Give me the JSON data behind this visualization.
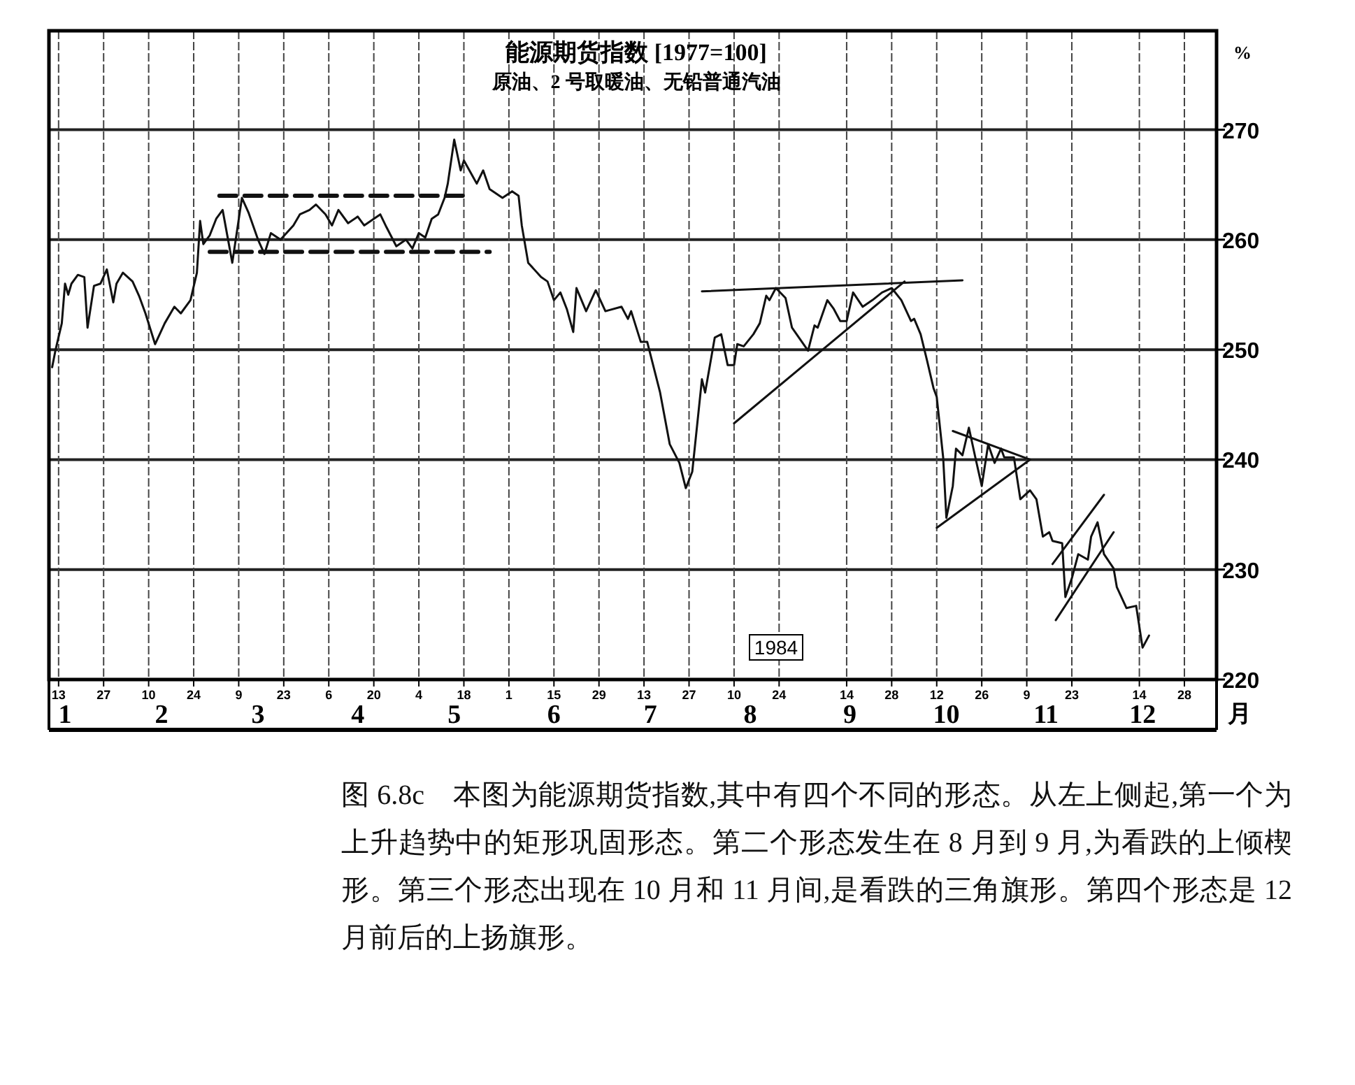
{
  "chart_data": {
    "type": "line",
    "title": "能源期货指数 [1977=100]",
    "subtitle": "原油、2 号取暖油、无铅普通汽油",
    "ylabel": "%",
    "xlabel": "月",
    "annotations": [
      "1984",
      "图 6.8c　本图为能源期货指数,其中有四个不同的形态。从左上侧起,第一个为上升趋势中的矩形巩固形态。第二个形态发生在 8 月到 9 月,为看跌的上倾楔形。第三个形态出现在 10 月和 11 月间,是看跌的三角旗形。第四个形态是 12 月前后的上扬旗形。"
    ],
    "xlim": [
      "1984-01-10",
      "1985-01-07"
    ],
    "ylim": [
      220,
      279
    ],
    "yticks": [
      220,
      230,
      240,
      250,
      260,
      270
    ],
    "xticks": [
      {
        "value": "1984-01-13",
        "label": "13"
      },
      {
        "value": "1984-01-27",
        "label": "27"
      },
      {
        "value": "1984-02-10",
        "label": "10"
      },
      {
        "value": "1984-02-24",
        "label": "24"
      },
      {
        "value": "1984-03-09",
        "label": "9"
      },
      {
        "value": "1984-03-23",
        "label": "23"
      },
      {
        "value": "1984-04-06",
        "label": "6"
      },
      {
        "value": "1984-04-20",
        "label": "20"
      },
      {
        "value": "1984-05-04",
        "label": "4"
      },
      {
        "value": "1984-05-18",
        "label": "18"
      },
      {
        "value": "1984-06-01",
        "label": "1"
      },
      {
        "value": "1984-06-15",
        "label": "15"
      },
      {
        "value": "1984-06-29",
        "label": "29"
      },
      {
        "value": "1984-07-13",
        "label": "13"
      },
      {
        "value": "1984-07-27",
        "label": "27"
      },
      {
        "value": "1984-08-10",
        "label": "10"
      },
      {
        "value": "1984-08-24",
        "label": "24"
      },
      {
        "value": "1984-09-14",
        "label": "14"
      },
      {
        "value": "1984-09-28",
        "label": "28"
      },
      {
        "value": "1984-10-12",
        "label": "12"
      },
      {
        "value": "1984-10-26",
        "label": "26"
      },
      {
        "value": "1984-11-09",
        "label": "9"
      },
      {
        "value": "1984-11-23",
        "label": "23"
      },
      {
        "value": "1984-12-14",
        "label": "14"
      },
      {
        "value": "1984-12-28",
        "label": "28"
      }
    ],
    "x2lim": [
      "1984-01-10",
      "1985-01-07"
    ],
    "x2ticks": [
      {
        "value": "1984-01-15",
        "label": "1"
      },
      {
        "value": "1984-02-14",
        "label": "2"
      },
      {
        "value": "1984-03-15",
        "label": "3"
      },
      {
        "value": "1984-04-15",
        "label": "4"
      },
      {
        "value": "1984-05-15",
        "label": "5"
      },
      {
        "value": "1984-06-15",
        "label": "6"
      },
      {
        "value": "1984-07-15",
        "label": "7"
      },
      {
        "value": "1984-08-15",
        "label": "8"
      },
      {
        "value": "1984-09-15",
        "label": "9"
      },
      {
        "value": "1984-10-15",
        "label": "10"
      },
      {
        "value": "1984-11-15",
        "label": "11"
      },
      {
        "value": "1984-12-15",
        "label": "12"
      }
    ],
    "grid": true,
    "series": [
      {
        "type": "line",
        "color": "#111111",
        "line_style": "solid",
        "x": [
          "1984-01-11",
          "1984-01-12",
          "1984-01-14",
          "1984-01-15",
          "1984-01-16",
          "1984-01-17",
          "1984-01-19",
          "1984-01-21",
          "1984-01-22",
          "1984-01-24",
          "1984-01-26",
          "1984-01-28",
          "1984-01-30",
          "1984-01-31",
          "1984-02-02",
          "1984-02-05",
          "1984-02-07",
          "1984-02-09",
          "1984-02-12",
          "1984-02-15",
          "1984-02-18",
          "1984-02-20",
          "1984-02-23",
          "1984-02-25",
          "1984-02-26",
          "1984-02-27",
          "1984-02-29",
          "1984-03-02",
          "1984-03-04",
          "1984-03-07",
          "1984-03-10",
          "1984-03-12",
          "1984-03-15",
          "1984-03-17",
          "1984-03-19",
          "1984-03-22",
          "1984-03-26",
          "1984-03-28",
          "1984-03-31",
          "1984-04-02",
          "1984-04-05",
          "1984-04-07",
          "1984-04-09",
          "1984-04-12",
          "1984-04-15",
          "1984-04-17",
          "1984-04-20",
          "1984-04-22",
          "1984-04-24",
          "1984-04-27",
          "1984-04-30",
          "1984-05-02",
          "1984-05-04",
          "1984-05-06",
          "1984-05-08",
          "1984-05-10",
          "1984-05-12",
          "1984-05-13",
          "1984-05-15",
          "1984-05-17",
          "1984-05-18",
          "1984-05-22",
          "1984-05-24",
          "1984-05-26",
          "1984-05-30",
          "1984-06-02",
          "1984-06-04",
          "1984-06-05",
          "1984-06-07",
          "1984-06-11",
          "1984-06-13",
          "1984-06-15",
          "1984-06-17",
          "1984-06-19",
          "1984-06-21",
          "1984-06-22",
          "1984-06-25",
          "1984-06-28",
          "1984-07-01",
          "1984-07-06",
          "1984-07-08",
          "1984-07-09",
          "1984-07-12",
          "1984-07-14",
          "1984-07-18",
          "1984-07-21",
          "1984-07-24",
          "1984-07-26",
          "1984-07-28",
          "1984-07-31",
          "1984-08-01",
          "1984-08-04",
          "1984-08-06",
          "1984-08-08",
          "1984-08-10",
          "1984-08-11",
          "1984-08-13",
          "1984-08-16",
          "1984-08-18",
          "1984-08-20",
          "1984-08-21",
          "1984-08-23",
          "1984-08-26",
          "1984-08-28",
          "1984-09-02",
          "1984-09-04",
          "1984-09-05",
          "1984-09-08",
          "1984-09-10",
          "1984-09-12",
          "1984-09-14",
          "1984-09-16",
          "1984-09-19",
          "1984-09-22",
          "1984-09-25",
          "1984-09-28",
          "1984-10-01",
          "1984-10-04",
          "1984-10-05",
          "1984-10-07",
          "1984-10-09",
          "1984-10-11",
          "1984-10-12",
          "1984-10-14",
          "1984-10-15",
          "1984-10-17",
          "1984-10-18",
          "1984-10-20",
          "1984-10-22",
          "1984-10-24",
          "1984-10-26",
          "1984-10-28",
          "1984-10-30",
          "1984-11-01",
          "1984-11-02",
          "1984-11-05",
          "1984-11-07",
          "1984-11-10",
          "1984-11-12",
          "1984-11-14",
          "1984-11-16",
          "1984-11-17",
          "1984-11-20",
          "1984-11-21",
          "1984-11-23",
          "1984-11-25",
          "1984-11-28",
          "1984-11-29",
          "1984-12-01",
          "1984-12-03",
          "1984-12-06",
          "1984-12-07",
          "1984-12-10",
          "1984-12-13",
          "1984-12-15",
          "1984-12-17"
        ],
        "values": [
          248.4,
          249.9,
          252.4,
          256.0,
          255,
          256,
          256.8,
          256.6,
          252,
          255.8,
          256,
          257.3,
          254.3,
          256,
          257,
          256.2,
          254.9,
          253.3,
          250.5,
          252.4,
          253.9,
          253.3,
          254.5,
          257.0,
          261.7,
          259.6,
          260.4,
          261.9,
          262.7,
          257.9,
          263.8,
          262.5,
          260,
          258.7,
          260.6,
          260,
          261.3,
          262.3,
          262.7,
          263.2,
          262.3,
          261.3,
          262.7,
          261.5,
          262.1,
          261.3,
          261.9,
          262.3,
          261.1,
          259.4,
          260,
          259.2,
          260.6,
          260.2,
          261.9,
          262.3,
          263.8,
          265.1,
          269.1,
          266.3,
          267.2,
          265.1,
          266.3,
          264.6,
          263.8,
          264.4,
          264,
          261.3,
          257.9,
          256.6,
          256.2,
          254.5,
          255.2,
          253.7,
          251.6,
          255.6,
          253.5,
          255.4,
          253.5,
          253.9,
          252.8,
          253.5,
          250.7,
          250.7,
          246.1,
          241.4,
          239.7,
          237.4,
          238.9,
          247.3,
          246.1,
          251.1,
          251.4,
          248.6,
          248.6,
          250.5,
          250.3,
          251.4,
          252.4,
          254.9,
          254.5,
          255.6,
          254.7,
          252,
          249.9,
          252.2,
          252,
          254.5,
          253.7,
          252.6,
          252.6,
          255.2,
          253.9,
          254.5,
          255.2,
          255.6,
          254.5,
          252.6,
          252.8,
          251.4,
          249,
          246.5,
          245.7,
          240.2,
          234.7,
          237.6,
          241,
          240.4,
          242.9,
          240.2,
          237.6,
          241.4,
          239.7,
          241,
          240.2,
          240.2,
          236.4,
          237.2,
          236.4,
          233,
          233.4,
          232.6,
          232.4,
          227.5,
          229.2,
          231.4,
          230.9,
          233,
          234.3,
          231.4,
          230.1,
          228.4,
          226.5,
          226.7,
          222.9,
          224
        ]
      },
      {
        "type": "line",
        "color": "#111111",
        "line_style": "dashed",
        "x": [
          "1984-03-03",
          "1984-05-20"
        ],
        "values": [
          264.0,
          264.0
        ]
      },
      {
        "type": "line",
        "color": "#111111",
        "line_style": "dashed",
        "x": [
          "1984-02-29",
          "1984-05-26"
        ],
        "values": [
          258.9,
          258.9
        ]
      },
      {
        "type": "line",
        "color": "#111111",
        "line_style": "solid",
        "x": [
          "1984-07-31",
          "1984-10-20"
        ],
        "values": [
          255.3,
          256.3
        ]
      },
      {
        "type": "line",
        "color": "#111111",
        "line_style": "solid",
        "x": [
          "1984-08-10",
          "1984-10-02"
        ],
        "values": [
          243.3,
          256.2
        ]
      },
      {
        "type": "line",
        "color": "#111111",
        "line_style": "solid",
        "x": [
          "1984-10-17",
          "1984-11-10"
        ],
        "values": [
          242.6,
          240.0
        ]
      },
      {
        "type": "line",
        "color": "#111111",
        "line_style": "solid",
        "x": [
          "1984-10-12",
          "1984-11-10"
        ],
        "values": [
          233.8,
          240.0
        ]
      },
      {
        "type": "line",
        "color": "#111111",
        "line_style": "solid",
        "x": [
          "1984-11-17",
          "1984-12-03"
        ],
        "values": [
          230.5,
          236.8
        ]
      },
      {
        "type": "line",
        "color": "#111111",
        "line_style": "solid",
        "x": [
          "1984-11-18",
          "1984-12-06"
        ],
        "values": [
          225.4,
          233.4
        ]
      }
    ]
  }
}
